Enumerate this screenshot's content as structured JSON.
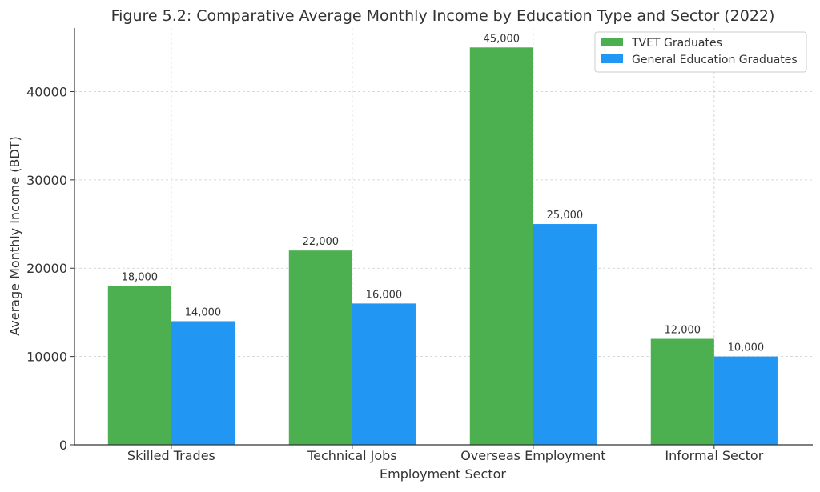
{
  "chart_data": {
    "type": "bar",
    "title": "Figure 5.2: Comparative Average Monthly Income by Education Type and Sector (2022)",
    "xlabel": "Employment Sector",
    "ylabel": "Average Monthly Income (BDT)",
    "categories": [
      "Skilled Trades",
      "Technical Jobs",
      "Overseas Employment",
      "Informal Sector"
    ],
    "series": [
      {
        "name": "TVET Graduates",
        "color": "#4CAF50",
        "values": [
          18000,
          22000,
          45000,
          12000
        ],
        "labels": [
          "18,000",
          "22,000",
          "45,000",
          "12,000"
        ]
      },
      {
        "name": "General Education Graduates",
        "color": "#2196F3",
        "values": [
          14000,
          16000,
          25000,
          10000
        ],
        "labels": [
          "14,000",
          "16,000",
          "25,000",
          "10,000"
        ]
      }
    ],
    "ylim": [
      0,
      47200
    ],
    "yticks": [
      0,
      10000,
      20000,
      30000,
      40000
    ],
    "ytick_labels": [
      "0",
      "10000",
      "20000",
      "30000",
      "40000"
    ],
    "grid": true,
    "legend_position": "top-right"
  }
}
